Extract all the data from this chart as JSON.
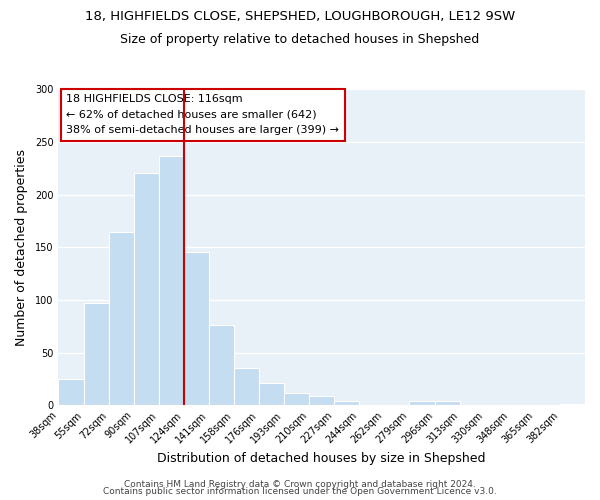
{
  "title1": "18, HIGHFIELDS CLOSE, SHEPSHED, LOUGHBOROUGH, LE12 9SW",
  "title2": "Size of property relative to detached houses in Shepshed",
  "xlabel": "Distribution of detached houses by size in Shepshed",
  "ylabel": "Number of detached properties",
  "bar_color": "#c5ddf0",
  "bar_edge_color": "#ffffff",
  "tick_labels": [
    "38sqm",
    "55sqm",
    "72sqm",
    "90sqm",
    "107sqm",
    "124sqm",
    "141sqm",
    "158sqm",
    "176sqm",
    "193sqm",
    "210sqm",
    "227sqm",
    "244sqm",
    "262sqm",
    "279sqm",
    "296sqm",
    "313sqm",
    "330sqm",
    "348sqm",
    "365sqm",
    "382sqm"
  ],
  "bar_heights": [
    25,
    97,
    165,
    221,
    237,
    146,
    76,
    35,
    21,
    12,
    9,
    4,
    0,
    0,
    4,
    4,
    0,
    0,
    0,
    0,
    1
  ],
  "ylim": [
    0,
    300
  ],
  "yticks": [
    0,
    50,
    100,
    150,
    200,
    250,
    300
  ],
  "vline_position": 5,
  "vline_color": "#cc0000",
  "annotation_title": "18 HIGHFIELDS CLOSE: 116sqm",
  "annotation_line1": "← 62% of detached houses are smaller (642)",
  "annotation_line2": "38% of semi-detached houses are larger (399) →",
  "annotation_box_facecolor": "#ffffff",
  "annotation_box_edgecolor": "#cc0000",
  "footer1": "Contains HM Land Registry data © Crown copyright and database right 2024.",
  "footer2": "Contains public sector information licensed under the Open Government Licence v3.0.",
  "background_color": "#ffffff",
  "plot_background": "#e8f0f8",
  "grid_color": "#ffffff",
  "title_fontsize": 9.5,
  "subtitle_fontsize": 9,
  "axis_label_fontsize": 9,
  "tick_fontsize": 7,
  "annotation_fontsize": 8,
  "footer_fontsize": 6.5
}
